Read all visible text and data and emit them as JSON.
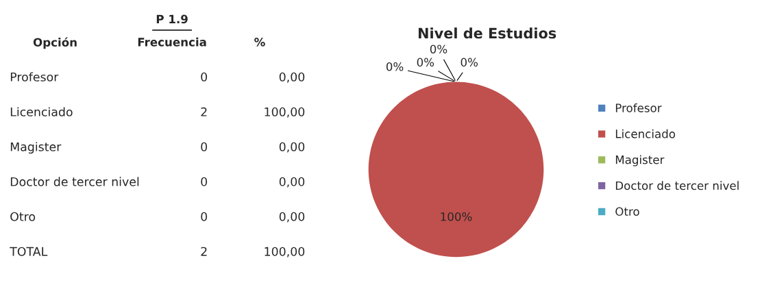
{
  "chart_data": [
    {
      "type": "other",
      "title": "P 1.9",
      "annotations": [
        "Opción",
        "Frecuencia",
        "%",
        "Profesor",
        "0",
        "0,00",
        "Licenciado",
        "2",
        "100,00",
        "Magister",
        "0",
        "0,00",
        "Doctor de tercer nivel",
        "0",
        "0,00",
        "Otro",
        "0",
        "0,00",
        "TOTAL",
        "2",
        "100,00"
      ]
    },
    {
      "type": "pie",
      "title": "Nivel de Estudios",
      "categories": [
        "Profesor",
        "Licenciado",
        "Magister",
        "Doctor de tercer nivel",
        "Otro"
      ],
      "values": [
        0,
        100,
        0,
        0,
        0
      ],
      "colors": [
        "#4f81bd",
        "#c0504d",
        "#9bbb59",
        "#8064a2",
        "#4bacc6"
      ],
      "value_labels": [
        "0%",
        "100%",
        "0%",
        "0%",
        "0%"
      ],
      "legend": "right"
    }
  ]
}
